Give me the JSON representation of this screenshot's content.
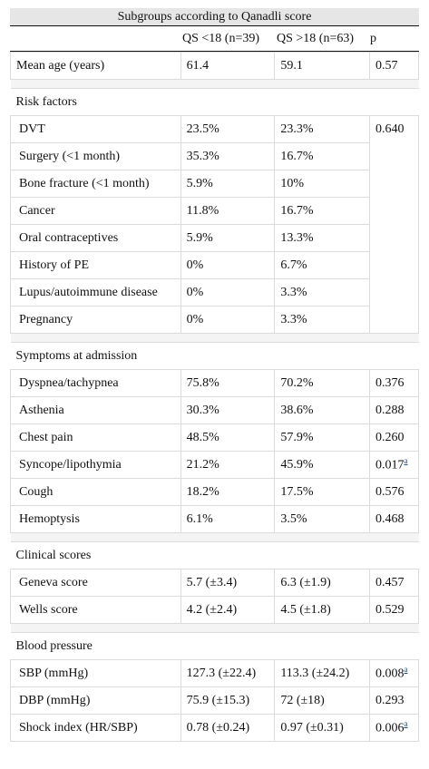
{
  "title": "Subgroups according to Qanadli score",
  "header": {
    "col1": "QS <18 (n=39)",
    "col2": "QS >18 (n=63)",
    "col3": "p"
  },
  "mean_age": {
    "label": "Mean age (years)",
    "a": "61.4",
    "b": "59.1",
    "p": "0.57"
  },
  "risk": {
    "title": "Risk factors",
    "p": "0.640",
    "rows": [
      {
        "label": "DVT",
        "a": "23.5%",
        "b": "23.3%"
      },
      {
        "label": "Surgery (<1 month)",
        "a": "35.3%",
        "b": "16.7%"
      },
      {
        "label": "Bone fracture (<1 month)",
        "a": "5.9%",
        "b": "10%"
      },
      {
        "label": "Cancer",
        "a": "11.8%",
        "b": "16.7%"
      },
      {
        "label": "Oral contraceptives",
        "a": "5.9%",
        "b": "13.3%"
      },
      {
        "label": "History of PE",
        "a": "0%",
        "b": "6.7%"
      },
      {
        "label": "Lupus/autoimmune disease",
        "a": "0%",
        "b": "3.3%"
      },
      {
        "label": "Pregnancy",
        "a": "0%",
        "b": "3.3%"
      }
    ]
  },
  "symptoms": {
    "title": "Symptoms at admission",
    "rows": [
      {
        "label": "Dyspnea/tachypnea",
        "a": "75.8%",
        "b": "70.2%",
        "p": "0.376"
      },
      {
        "label": "Asthenia",
        "a": "30.3%",
        "b": "38.6%",
        "p": "0.288"
      },
      {
        "label": "Chest pain",
        "a": "48.5%",
        "b": "57.9%",
        "p": "0.260"
      },
      {
        "label": "Syncope/lipothymia",
        "a": "21.2%",
        "b": "45.9%",
        "p": "0.017",
        "note": "a"
      },
      {
        "label": "Cough",
        "a": "18.2%",
        "b": "17.5%",
        "p": "0.576"
      },
      {
        "label": "Hemoptysis",
        "a": "6.1%",
        "b": "3.5%",
        "p": "0.468"
      }
    ]
  },
  "scores": {
    "title": "Clinical scores",
    "rows": [
      {
        "label": "Geneva score",
        "a": "5.7 (±3.4)",
        "b": "6.3 (±1.9)",
        "p": "0.457"
      },
      {
        "label": "Wells score",
        "a": "4.2 (±2.4)",
        "b": "4.5 (±1.8)",
        "p": "0.529"
      }
    ]
  },
  "bp": {
    "title": "Blood pressure",
    "rows": [
      {
        "label": "SBP (mmHg)",
        "a": "127.3 (±22.4)",
        "b": "113.3 (±24.2)",
        "p": "0.008",
        "note": "a"
      },
      {
        "label": "DBP (mmHg)",
        "a": "75.9 (±15.3)",
        "b": "72 (±18)",
        "p": "0.293"
      },
      {
        "label": "Shock index (HR/SBP)",
        "a": "0.78 (±0.24)",
        "b": "0.97 (±0.31)",
        "p": "0.006",
        "note": "a"
      }
    ]
  }
}
